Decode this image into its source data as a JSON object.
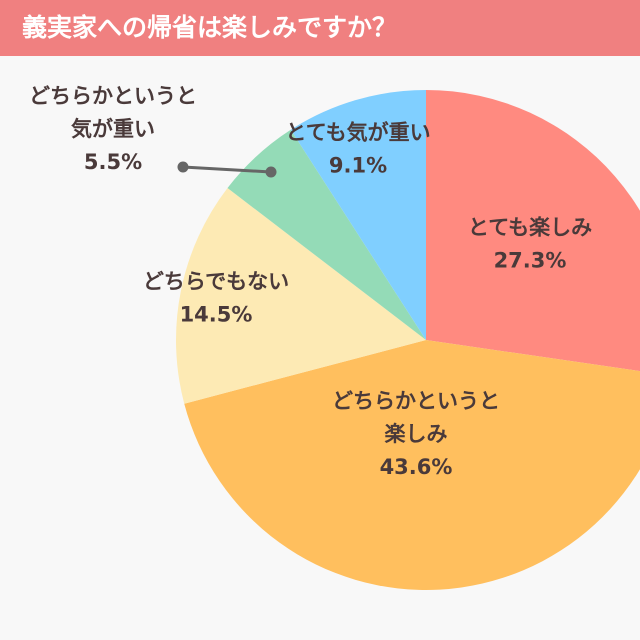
{
  "header": {
    "title": "義実家への帰省は楽しみですか？"
  },
  "colors": {
    "header_bg": "#f08080",
    "background": "#f8f8f8",
    "label_text": "#4a3a3a",
    "leader_line": "#666666"
  },
  "chart_data": {
    "type": "pie",
    "title": "義実家への帰省は楽しみですか？",
    "start": "12 o'clock",
    "direction": "clockwise",
    "slices": [
      {
        "label": "とても楽しみ",
        "label_lines": [
          "とても楽しみ"
        ],
        "value": 27.3,
        "display": "27.3%",
        "color": "#ff8a80"
      },
      {
        "label": "どちらかというと楽しみ",
        "label_lines": [
          "どちらかというと",
          "楽しみ"
        ],
        "value": 43.6,
        "display": "43.6%",
        "color": "#ffbf5e"
      },
      {
        "label": "どちらでもない",
        "label_lines": [
          "どちらでもない"
        ],
        "value": 14.5,
        "display": "14.5%",
        "color": "#fdeab4"
      },
      {
        "label": "どちらかというと気が重い",
        "label_lines": [
          "どちらかというと",
          "気が重い"
        ],
        "value": 5.5,
        "display": "5.5%",
        "color": "#94dbb7"
      },
      {
        "label": "とても気が重い",
        "label_lines": [
          "とても気が重い"
        ],
        "value": 9.1,
        "display": "9.1%",
        "color": "#80cfff"
      }
    ]
  }
}
